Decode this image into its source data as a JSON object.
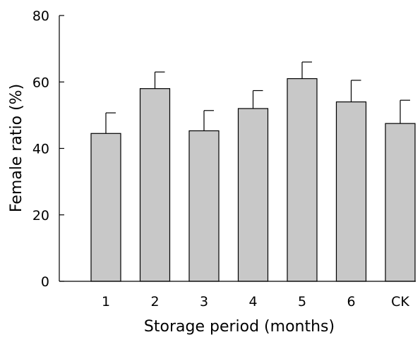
{
  "chart_data": {
    "type": "bar",
    "title": "",
    "xlabel": "Storage period (months)",
    "ylabel": "Female ratio (%)",
    "categories": [
      "1",
      "2",
      "3",
      "4",
      "5",
      "6",
      "CK"
    ],
    "values": [
      44.5,
      58.0,
      45.3,
      52.0,
      61.0,
      54.0,
      47.5
    ],
    "error_upper": [
      6.2,
      5.0,
      6.1,
      5.4,
      5.0,
      6.5,
      7.0
    ],
    "ylim": [
      0,
      80
    ],
    "yticks": [
      0,
      20,
      40,
      60,
      80
    ],
    "grid": false,
    "legend": "none",
    "colors": {
      "bar_fill": "#c8c8c8",
      "bar_stroke": "#000000",
      "axis": "#000000"
    }
  }
}
